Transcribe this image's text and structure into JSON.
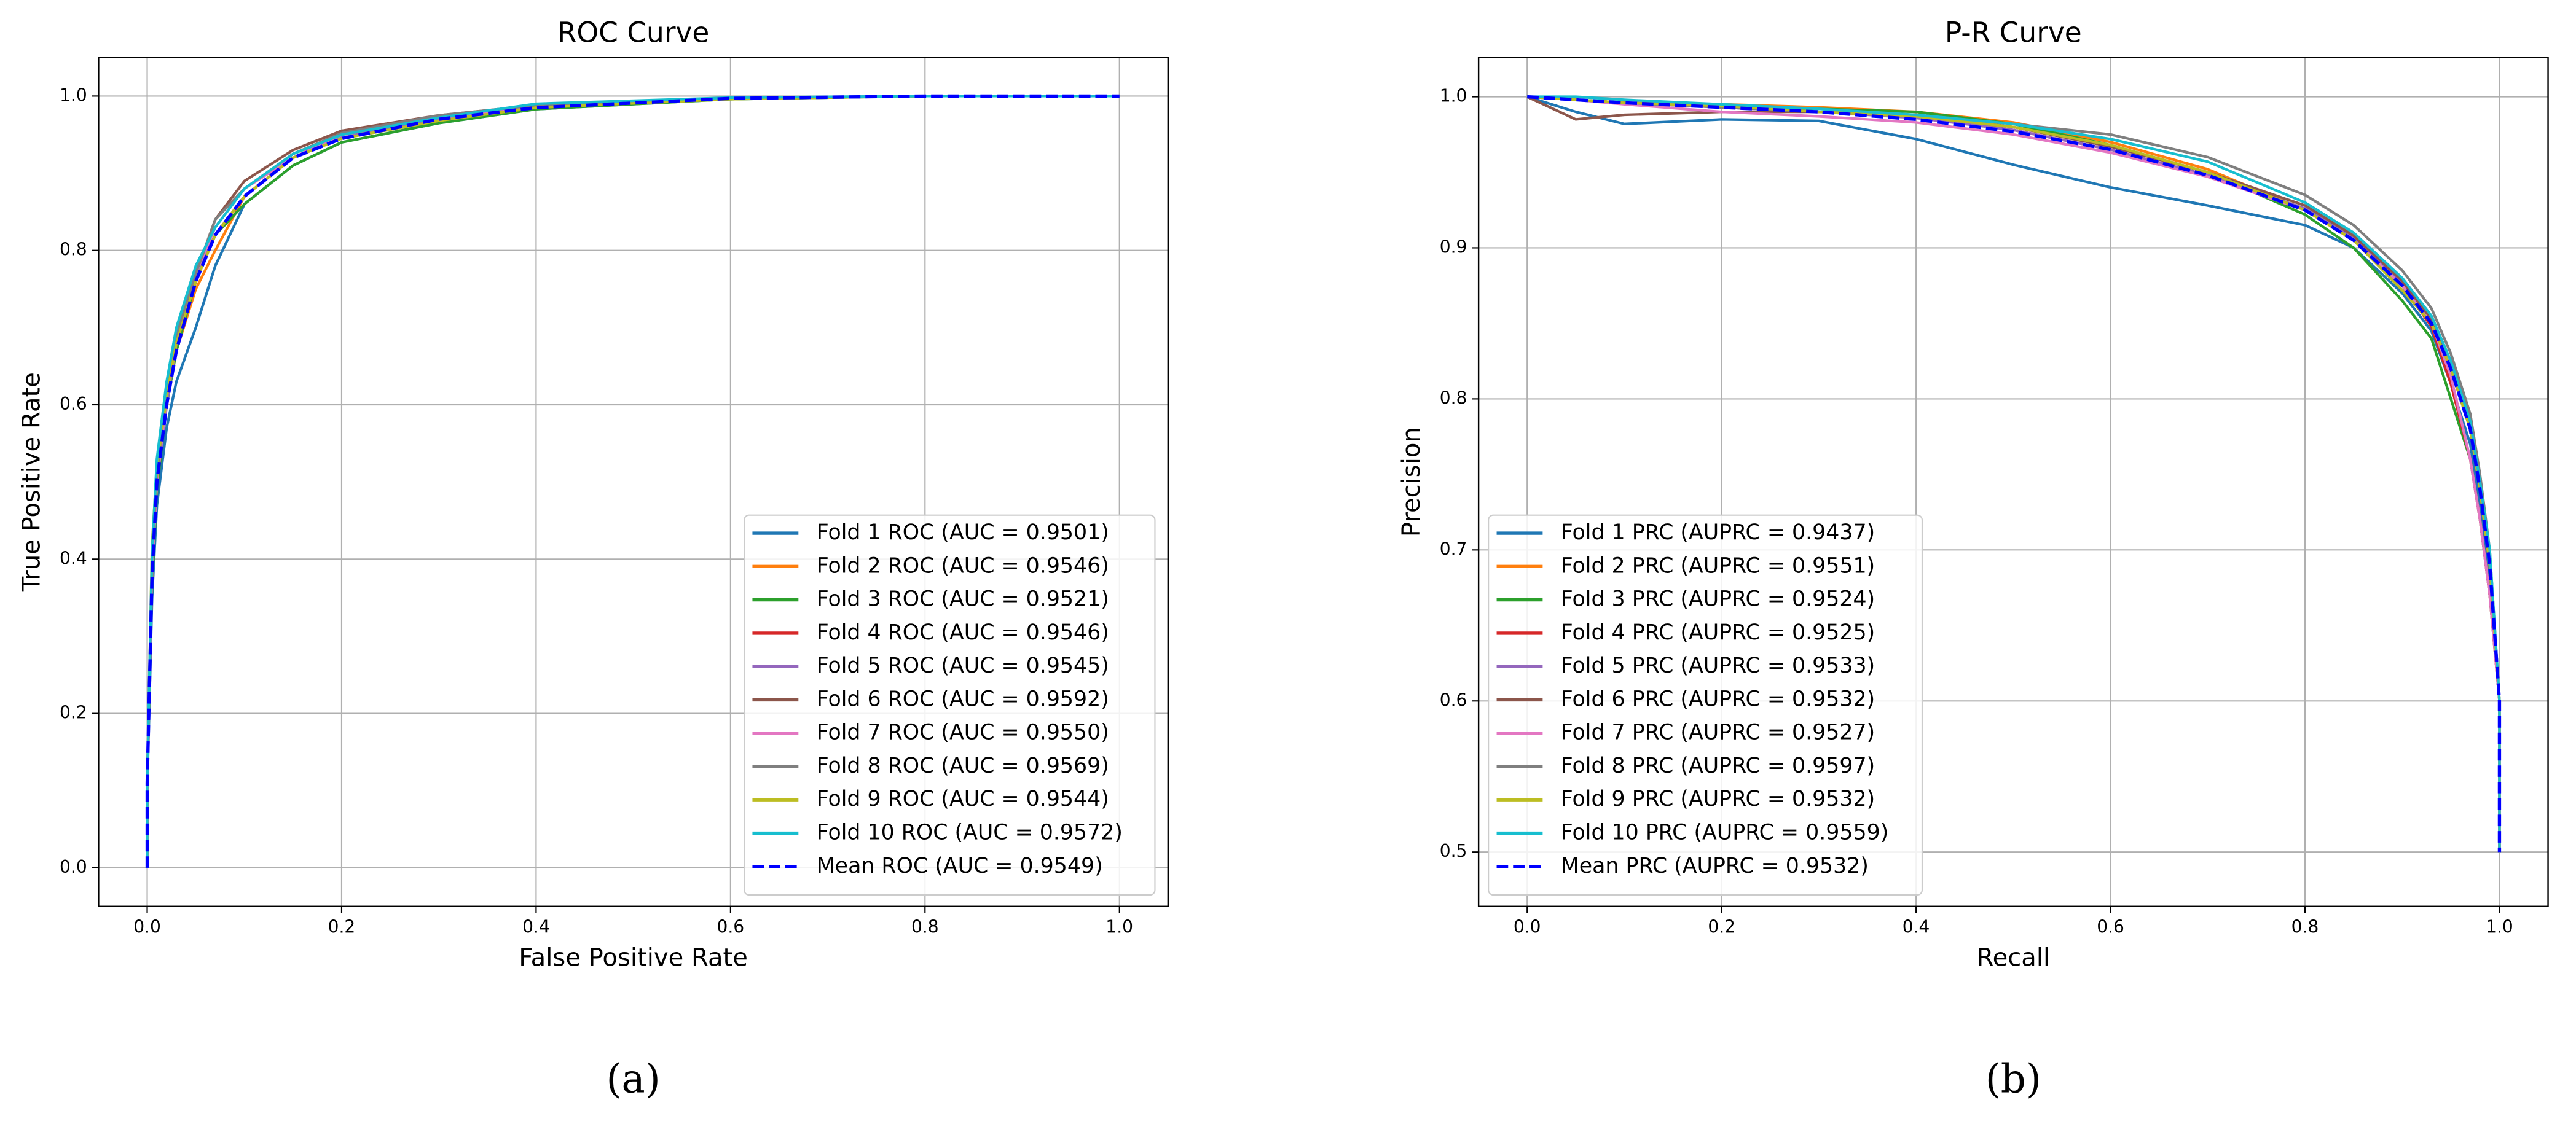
{
  "chart_data": [
    {
      "type": "line",
      "title": "ROC Curve",
      "x_label": "False Positive Rate",
      "y_label": "True Positive Rate",
      "panel_label": "(a)",
      "xlim": [
        -0.05,
        1.05
      ],
      "ylim": [
        -0.05,
        1.05
      ],
      "xticks": [
        {
          "value": 0,
          "label": "0.0"
        },
        {
          "value": 0.2,
          "label": "0.2"
        },
        {
          "value": 0.4,
          "label": "0.4"
        },
        {
          "value": 0.6,
          "label": "0.6"
        },
        {
          "value": 0.8,
          "label": "0.8"
        },
        {
          "value": 1,
          "label": "1.0"
        }
      ],
      "yticks": [
        {
          "value": 0,
          "label": "0.0"
        },
        {
          "value": 0.2,
          "label": "0.2"
        },
        {
          "value": 0.4,
          "label": "0.4"
        },
        {
          "value": 0.6,
          "label": "0.6"
        },
        {
          "value": 0.8,
          "label": "0.8"
        },
        {
          "value": 1,
          "label": "1.0"
        }
      ],
      "grid": true,
      "legend": "lower right",
      "x": [
        0,
        0,
        0.005,
        0.01,
        0.02,
        0.03,
        0.05,
        0.07,
        0.1,
        0.15,
        0.2,
        0.3,
        0.4,
        0.6,
        0.8,
        1.0
      ],
      "series": [
        {
          "name": "Fold 1 ROC (AUC = 0.9501)",
          "color": "#1f77b4",
          "linestyle": "solid",
          "values": [
            0,
            0.1,
            0.35,
            0.47,
            0.57,
            0.63,
            0.7,
            0.78,
            0.86,
            0.91,
            0.94,
            0.965,
            0.983,
            0.996,
            1,
            1
          ]
        },
        {
          "name": "Fold 2 ROC (AUC = 0.9546)",
          "color": "#ff7f0e",
          "linestyle": "solid",
          "values": [
            0,
            0.11,
            0.38,
            0.5,
            0.6,
            0.67,
            0.75,
            0.8,
            0.87,
            0.92,
            0.945,
            0.97,
            0.985,
            0.997,
            1,
            1
          ]
        },
        {
          "name": "Fold 3 ROC (AUC = 0.9521)",
          "color": "#2ca02c",
          "linestyle": "solid",
          "values": [
            0,
            0.11,
            0.37,
            0.49,
            0.6,
            0.67,
            0.76,
            0.82,
            0.86,
            0.91,
            0.94,
            0.965,
            0.983,
            0.996,
            1,
            1
          ]
        },
        {
          "name": "Fold 4 ROC (AUC = 0.9546)",
          "color": "#d62728",
          "linestyle": "solid",
          "values": [
            0,
            0.11,
            0.39,
            0.51,
            0.61,
            0.68,
            0.76,
            0.82,
            0.87,
            0.92,
            0.95,
            0.97,
            0.985,
            0.997,
            1,
            1
          ]
        },
        {
          "name": "Fold 5 ROC (AUC = 0.9545)",
          "color": "#9467bd",
          "linestyle": "solid",
          "values": [
            0,
            0.11,
            0.38,
            0.5,
            0.6,
            0.68,
            0.77,
            0.82,
            0.87,
            0.92,
            0.946,
            0.97,
            0.985,
            0.997,
            1,
            1
          ]
        },
        {
          "name": "Fold 6 ROC (AUC = 0.9592)",
          "color": "#8c564b",
          "linestyle": "solid",
          "values": [
            0,
            0.11,
            0.4,
            0.52,
            0.62,
            0.69,
            0.77,
            0.84,
            0.89,
            0.93,
            0.955,
            0.975,
            0.988,
            0.997,
            1,
            1
          ]
        },
        {
          "name": "Fold 7 ROC (AUC = 0.9550)",
          "color": "#e377c2",
          "linestyle": "solid",
          "values": [
            0,
            0.11,
            0.39,
            0.5,
            0.61,
            0.68,
            0.77,
            0.83,
            0.88,
            0.92,
            0.95,
            0.972,
            0.986,
            0.997,
            1,
            1
          ]
        },
        {
          "name": "Fold 8 ROC (AUC = 0.9569)",
          "color": "#7f7f7f",
          "linestyle": "solid",
          "values": [
            0,
            0.11,
            0.4,
            0.51,
            0.62,
            0.69,
            0.77,
            0.84,
            0.88,
            0.925,
            0.952,
            0.975,
            0.988,
            0.997,
            1,
            1
          ]
        },
        {
          "name": "Fold 9 ROC (AUC = 0.9544)",
          "color": "#bcbd22",
          "linestyle": "solid",
          "values": [
            0,
            0.11,
            0.42,
            0.52,
            0.61,
            0.68,
            0.76,
            0.82,
            0.87,
            0.92,
            0.945,
            0.968,
            0.985,
            0.996,
            1,
            1
          ]
        },
        {
          "name": "Fold 10 ROC (AUC = 0.9572)",
          "color": "#17becf",
          "linestyle": "solid",
          "values": [
            0,
            0.11,
            0.41,
            0.53,
            0.63,
            0.7,
            0.78,
            0.83,
            0.88,
            0.925,
            0.95,
            0.972,
            0.99,
            0.998,
            1,
            1
          ]
        },
        {
          "name": "Mean ROC (AUC = 0.9549)",
          "color": "#0000ff",
          "linestyle": "dashed",
          "values": [
            0,
            0.11,
            0.38,
            0.5,
            0.6,
            0.67,
            0.76,
            0.82,
            0.87,
            0.92,
            0.945,
            0.97,
            0.985,
            0.997,
            1,
            1
          ]
        }
      ]
    },
    {
      "type": "line",
      "title": "P-R Curve",
      "x_label": "Recall",
      "y_label": "Precision",
      "panel_label": "(b)",
      "xlim": [
        -0.05,
        1.05
      ],
      "ylim": [
        0.464,
        1.026
      ],
      "xticks": [
        {
          "value": 0,
          "label": "0.0"
        },
        {
          "value": 0.2,
          "label": "0.2"
        },
        {
          "value": 0.4,
          "label": "0.4"
        },
        {
          "value": 0.6,
          "label": "0.6"
        },
        {
          "value": 0.8,
          "label": "0.8"
        },
        {
          "value": 1,
          "label": "1.0"
        }
      ],
      "yticks": [
        0.5,
        0.6,
        0.7,
        0.8,
        0.9,
        {
          "value": 1,
          "label": "1.0"
        }
      ],
      "grid": true,
      "legend": "lower left",
      "x": [
        0,
        0.05,
        0.1,
        0.2,
        0.3,
        0.4,
        0.5,
        0.6,
        0.7,
        0.8,
        0.85,
        0.9,
        0.93,
        0.95,
        0.97,
        0.98,
        0.99,
        1,
        1
      ],
      "series": [
        {
          "name": "Fold 1 PRC (AUPRC = 0.9437)",
          "color": "#1f77b4",
          "linestyle": "solid",
          "values": [
            1,
            0.99,
            0.982,
            0.985,
            0.984,
            0.972,
            0.955,
            0.94,
            0.928,
            0.915,
            0.9,
            0.87,
            0.845,
            0.81,
            0.77,
            0.73,
            0.68,
            0.6,
            0.5
          ]
        },
        {
          "name": "Fold 2 PRC (AUPRC = 0.9551)",
          "color": "#ff7f0e",
          "linestyle": "solid",
          "values": [
            1,
            0.998,
            0.996,
            0.995,
            0.993,
            0.99,
            0.983,
            0.97,
            0.952,
            0.925,
            0.905,
            0.875,
            0.85,
            0.82,
            0.78,
            0.74,
            0.69,
            0.6,
            0.5
          ]
        },
        {
          "name": "Fold 3 PRC (AUPRC = 0.9524)",
          "color": "#2ca02c",
          "linestyle": "solid",
          "values": [
            1,
            0.998,
            0.996,
            0.994,
            0.992,
            0.99,
            0.982,
            0.968,
            0.95,
            0.922,
            0.9,
            0.865,
            0.84,
            0.8,
            0.76,
            0.72,
            0.67,
            0.6,
            0.5
          ]
        },
        {
          "name": "Fold 4 PRC (AUPRC = 0.9525)",
          "color": "#d62728",
          "linestyle": "solid",
          "values": [
            1,
            0.998,
            0.996,
            0.993,
            0.99,
            0.987,
            0.978,
            0.965,
            0.948,
            0.925,
            0.905,
            0.875,
            0.848,
            0.81,
            0.76,
            0.72,
            0.67,
            0.6,
            0.5
          ]
        },
        {
          "name": "Fold 5 PRC (AUPRC = 0.9533)",
          "color": "#9467bd",
          "linestyle": "solid",
          "values": [
            1,
            0.998,
            0.996,
            0.993,
            0.99,
            0.986,
            0.978,
            0.965,
            0.948,
            0.926,
            0.906,
            0.876,
            0.85,
            0.82,
            0.78,
            0.74,
            0.69,
            0.6,
            0.5
          ]
        },
        {
          "name": "Fold 6 PRC (AUPRC = 0.9532)",
          "color": "#8c564b",
          "linestyle": "solid",
          "values": [
            1,
            0.985,
            0.988,
            0.99,
            0.99,
            0.988,
            0.98,
            0.967,
            0.95,
            0.928,
            0.908,
            0.878,
            0.852,
            0.82,
            0.78,
            0.74,
            0.69,
            0.6,
            0.5
          ]
        },
        {
          "name": "Fold 7 PRC (AUPRC = 0.9527)",
          "color": "#e377c2",
          "linestyle": "solid",
          "values": [
            1,
            0.998,
            0.995,
            0.99,
            0.987,
            0.983,
            0.975,
            0.963,
            0.947,
            0.925,
            0.905,
            0.875,
            0.85,
            0.815,
            0.76,
            0.72,
            0.67,
            0.6,
            0.5
          ]
        },
        {
          "name": "Fold 8 PRC (AUPRC = 0.9597)",
          "color": "#7f7f7f",
          "linestyle": "solid",
          "values": [
            1,
            0.998,
            0.996,
            0.993,
            0.99,
            0.988,
            0.982,
            0.975,
            0.96,
            0.935,
            0.915,
            0.885,
            0.86,
            0.83,
            0.79,
            0.75,
            0.7,
            0.6,
            0.5
          ]
        },
        {
          "name": "Fold 9 PRC (AUPRC = 0.9532)",
          "color": "#bcbd22",
          "linestyle": "solid",
          "values": [
            1,
            0.998,
            0.996,
            0.994,
            0.99,
            0.987,
            0.98,
            0.968,
            0.95,
            0.925,
            0.905,
            0.872,
            0.85,
            0.82,
            0.78,
            0.74,
            0.69,
            0.6,
            0.5
          ]
        },
        {
          "name": "Fold 10 PRC (AUPRC = 0.9559)",
          "color": "#17becf",
          "linestyle": "solid",
          "values": [
            1,
            1,
            0.998,
            0.995,
            0.992,
            0.988,
            0.982,
            0.972,
            0.957,
            0.93,
            0.91,
            0.88,
            0.855,
            0.825,
            0.785,
            0.745,
            0.7,
            0.6,
            0.5
          ]
        },
        {
          "name": "Mean PRC (AUPRC = 0.9532)",
          "color": "#0000ff",
          "linestyle": "dashed",
          "values": [
            1,
            0.998,
            0.996,
            0.993,
            0.99,
            0.985,
            0.977,
            0.965,
            0.948,
            0.925,
            0.905,
            0.875,
            0.85,
            0.82,
            0.78,
            0.74,
            0.69,
            0.6,
            0.5
          ]
        }
      ]
    }
  ]
}
